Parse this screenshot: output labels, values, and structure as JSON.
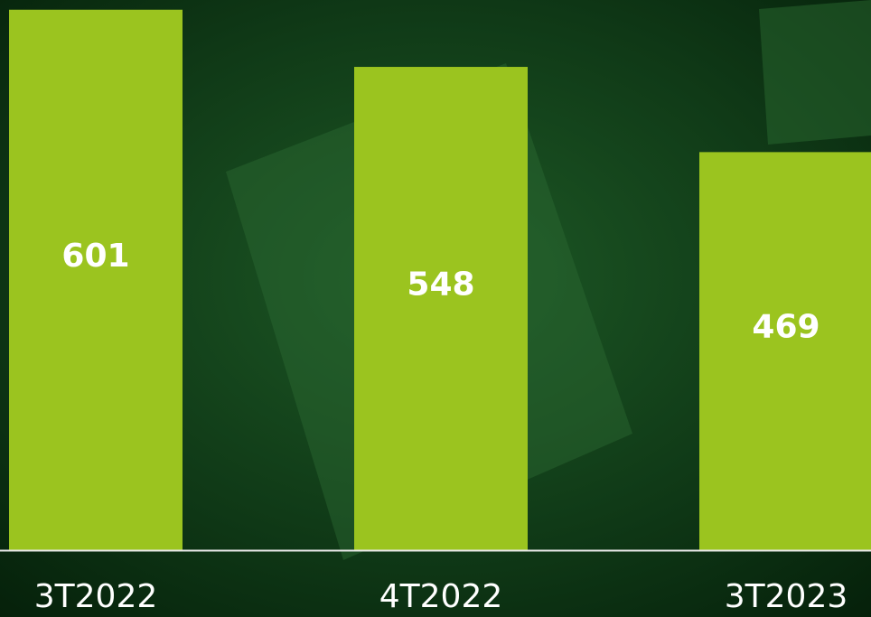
{
  "chart_data": {
    "type": "bar",
    "categories": [
      "3T2022",
      "4T2022",
      "3T2023"
    ],
    "values": [
      601,
      548,
      469
    ],
    "color": "#9bc41f",
    "ylim": [
      100,
      610
    ]
  }
}
